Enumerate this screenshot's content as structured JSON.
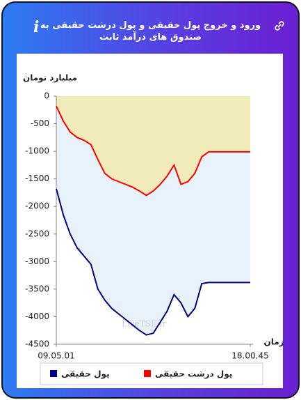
{
  "header": {
    "title": "ورود و خروج پول حقیقی و پول درشت حقیقی به صندوق های درآمد ثابت"
  },
  "chart_data": {
    "type": "area-line",
    "y_label": "میلیارد تومان",
    "x_label": "زمان",
    "watermark": "LiveTSE.ir",
    "categories": [
      "09.05.01",
      null,
      null,
      null,
      null,
      null,
      null,
      null,
      null,
      null,
      null,
      null,
      null,
      null,
      null,
      null,
      null,
      null,
      null,
      null,
      null,
      null,
      null,
      null,
      null,
      null,
      null,
      null,
      "18.00.45"
    ],
    "series": [
      {
        "name": "پول حقیقی",
        "color": "#00008b",
        "fill": "#e8f2fa",
        "values": [
          -1680,
          -2150,
          -2500,
          -2750,
          -2900,
          -3050,
          -3500,
          -3700,
          -3850,
          -3950,
          -4050,
          -4150,
          -4250,
          -4330,
          -4300,
          -4100,
          -3900,
          -3600,
          -3750,
          -4000,
          -3850,
          -3400,
          -3380,
          -3380,
          -3380,
          -3380,
          -3380,
          -3380,
          -3380
        ]
      },
      {
        "name": "پول درشت حقیقی",
        "color": "#ff0000",
        "fill": "#f1eab9",
        "values": [
          -180,
          -450,
          -650,
          -750,
          -800,
          -880,
          -1150,
          -1400,
          -1500,
          -1550,
          -1600,
          -1650,
          -1720,
          -1800,
          -1720,
          -1600,
          -1450,
          -1250,
          -1600,
          -1550,
          -1400,
          -1100,
          -1010,
          -1010,
          -1010,
          -1010,
          -1010,
          -1010,
          -1010
        ]
      }
    ],
    "ylim": [
      -4500,
      0
    ],
    "yticks": [
      0,
      -500,
      -1000,
      -1500,
      -2000,
      -2500,
      -3000,
      -3500,
      -4000,
      -4500
    ]
  }
}
